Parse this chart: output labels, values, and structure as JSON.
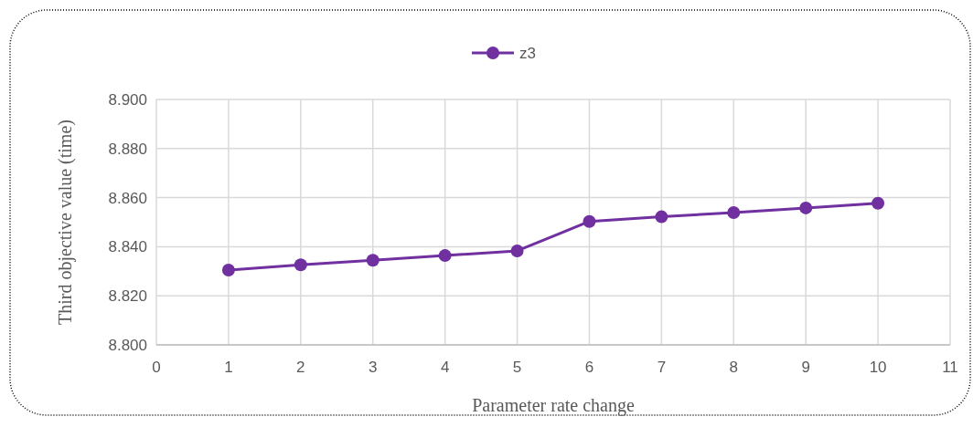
{
  "chart_data": {
    "type": "line",
    "xlabel": "Parameter rate change",
    "ylabel": "Third objective value (time)",
    "x": [
      1,
      2,
      3,
      4,
      5,
      6,
      7,
      8,
      9,
      10
    ],
    "series": [
      {
        "name": "z3",
        "color": "#7030a0",
        "values": [
          8.8305,
          8.8326,
          8.8345,
          8.8364,
          8.8383,
          8.8503,
          8.8522,
          8.8539,
          8.8558,
          8.8577
        ]
      }
    ],
    "xlim": [
      0,
      11
    ],
    "xticks": [
      0,
      1,
      2,
      3,
      4,
      5,
      6,
      7,
      8,
      9,
      10,
      11
    ],
    "ylim": [
      8.8,
      8.9
    ],
    "yticks": [
      {
        "value": 8.8,
        "label": "8.800"
      },
      {
        "value": 8.82,
        "label": "8.820"
      },
      {
        "value": 8.84,
        "label": "8.840"
      },
      {
        "value": 8.86,
        "label": "8.860"
      },
      {
        "value": 8.88,
        "label": "8.880"
      },
      {
        "value": 8.9,
        "label": "8.900"
      }
    ],
    "grid": true,
    "legend": "top",
    "marker": "circle",
    "line_style": "solid"
  }
}
